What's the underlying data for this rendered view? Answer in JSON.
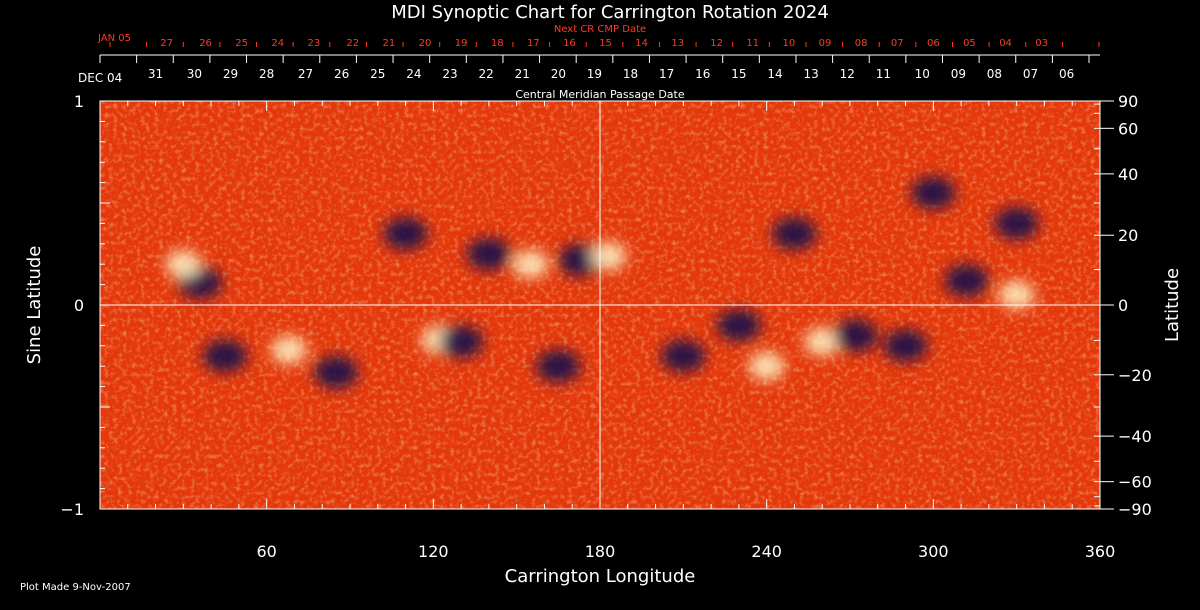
{
  "chart_data": {
    "type": "heatmap",
    "title": "MDI Synoptic Chart for Carrington Rotation 2024",
    "xlabel": "Carrington Longitude",
    "ylabel_left": "Sine Latitude",
    "ylabel_right": "Latitude",
    "top_label": "Central Meridian Passage Date",
    "next_label": "Next CR CMP Date",
    "xlim": [
      0,
      360
    ],
    "ylim": [
      -1,
      1
    ],
    "x_ticks": [
      60,
      120,
      180,
      240,
      300,
      360
    ],
    "y_ticks_left": [
      {
        "value": 1,
        "label": "1"
      },
      {
        "value": 0,
        "label": "0"
      },
      {
        "value": -1,
        "label": "−1"
      }
    ],
    "lat_ticks": [
      {
        "deg": 90,
        "label": "90"
      },
      {
        "deg": 60,
        "label": "60"
      },
      {
        "deg": 40,
        "label": "40"
      },
      {
        "deg": 20,
        "label": "20"
      },
      {
        "deg": 0,
        "label": "0"
      },
      {
        "deg": -20,
        "label": "−20"
      },
      {
        "deg": -40,
        "label": "−40"
      },
      {
        "deg": -60,
        "label": "−60"
      },
      {
        "deg": -90,
        "label": "−90"
      }
    ],
    "cmp_start_label": "DEC 04",
    "cmp_dates": [
      {
        "label": "31",
        "lon": 20
      },
      {
        "label": "30",
        "lon": 34
      },
      {
        "label": "29",
        "lon": 47
      },
      {
        "label": "28",
        "lon": 60
      },
      {
        "label": "27",
        "lon": 74
      },
      {
        "label": "26",
        "lon": 87
      },
      {
        "label": "25",
        "lon": 100
      },
      {
        "label": "24",
        "lon": 113
      },
      {
        "label": "23",
        "lon": 126
      },
      {
        "label": "22",
        "lon": 139
      },
      {
        "label": "21",
        "lon": 152
      },
      {
        "label": "20",
        "lon": 165
      },
      {
        "label": "19",
        "lon": 178
      },
      {
        "label": "18",
        "lon": 191
      },
      {
        "label": "17",
        "lon": 204
      },
      {
        "label": "16",
        "lon": 217
      },
      {
        "label": "15",
        "lon": 230
      },
      {
        "label": "14",
        "lon": 243
      },
      {
        "label": "13",
        "lon": 256
      },
      {
        "label": "12",
        "lon": 269
      },
      {
        "label": "11",
        "lon": 282
      },
      {
        "label": "10",
        "lon": 296
      },
      {
        "label": "09",
        "lon": 309
      },
      {
        "label": "08",
        "lon": 322
      },
      {
        "label": "07",
        "lon": 335
      },
      {
        "label": "06",
        "lon": 348
      }
    ],
    "next_start_label": "JAN 05",
    "next_dates": [
      {
        "label": "27",
        "lon": 24
      },
      {
        "label": "26",
        "lon": 38
      },
      {
        "label": "25",
        "lon": 51
      },
      {
        "label": "24",
        "lon": 64
      },
      {
        "label": "23",
        "lon": 77
      },
      {
        "label": "22",
        "lon": 91
      },
      {
        "label": "21",
        "lon": 104
      },
      {
        "label": "20",
        "lon": 117
      },
      {
        "label": "19",
        "lon": 130
      },
      {
        "label": "18",
        "lon": 143
      },
      {
        "label": "17",
        "lon": 156
      },
      {
        "label": "16",
        "lon": 169
      },
      {
        "label": "15",
        "lon": 182
      },
      {
        "label": "14",
        "lon": 195
      },
      {
        "label": "13",
        "lon": 208
      },
      {
        "label": "12",
        "lon": 222
      },
      {
        "label": "11",
        "lon": 235
      },
      {
        "label": "10",
        "lon": 248
      },
      {
        "label": "09",
        "lon": 261
      },
      {
        "label": "08",
        "lon": 274
      },
      {
        "label": "07",
        "lon": 287
      },
      {
        "label": "06",
        "lon": 300
      },
      {
        "label": "05",
        "lon": 313
      },
      {
        "label": "04",
        "lon": 326
      },
      {
        "label": "03",
        "lon": 339
      }
    ],
    "gridlines": {
      "vertical_lon": 180,
      "horizontal_sinlat": 0
    },
    "colormap": {
      "background": "#ff4a12",
      "positive": "#fff6c8",
      "negative": "#14124a"
    },
    "regions": [
      {
        "lon": 36,
        "sinlat": 0.11,
        "sign": "negative"
      },
      {
        "lon": 30,
        "sinlat": 0.2,
        "sign": "positive"
      },
      {
        "lon": 45,
        "sinlat": -0.25,
        "sign": "negative"
      },
      {
        "lon": 68,
        "sinlat": -0.22,
        "sign": "positive"
      },
      {
        "lon": 85,
        "sinlat": -0.33,
        "sign": "negative"
      },
      {
        "lon": 110,
        "sinlat": 0.35,
        "sign": "negative"
      },
      {
        "lon": 140,
        "sinlat": 0.25,
        "sign": "negative"
      },
      {
        "lon": 155,
        "sinlat": 0.2,
        "sign": "positive"
      },
      {
        "lon": 122,
        "sinlat": -0.17,
        "sign": "positive"
      },
      {
        "lon": 130,
        "sinlat": -0.18,
        "sign": "negative"
      },
      {
        "lon": 165,
        "sinlat": -0.3,
        "sign": "negative"
      },
      {
        "lon": 173,
        "sinlat": 0.22,
        "sign": "negative"
      },
      {
        "lon": 183,
        "sinlat": 0.24,
        "sign": "positive"
      },
      {
        "lon": 210,
        "sinlat": -0.25,
        "sign": "negative"
      },
      {
        "lon": 230,
        "sinlat": -0.1,
        "sign": "negative"
      },
      {
        "lon": 240,
        "sinlat": -0.3,
        "sign": "positive"
      },
      {
        "lon": 260,
        "sinlat": -0.18,
        "sign": "positive"
      },
      {
        "lon": 272,
        "sinlat": -0.15,
        "sign": "negative"
      },
      {
        "lon": 290,
        "sinlat": -0.2,
        "sign": "negative"
      },
      {
        "lon": 250,
        "sinlat": 0.35,
        "sign": "negative"
      },
      {
        "lon": 300,
        "sinlat": 0.55,
        "sign": "negative"
      },
      {
        "lon": 312,
        "sinlat": 0.12,
        "sign": "negative"
      },
      {
        "lon": 330,
        "sinlat": 0.05,
        "sign": "positive"
      },
      {
        "lon": 330,
        "sinlat": 0.4,
        "sign": "negative"
      }
    ]
  },
  "footer": {
    "plot_made": "Plot Made  9-Nov-2007"
  }
}
